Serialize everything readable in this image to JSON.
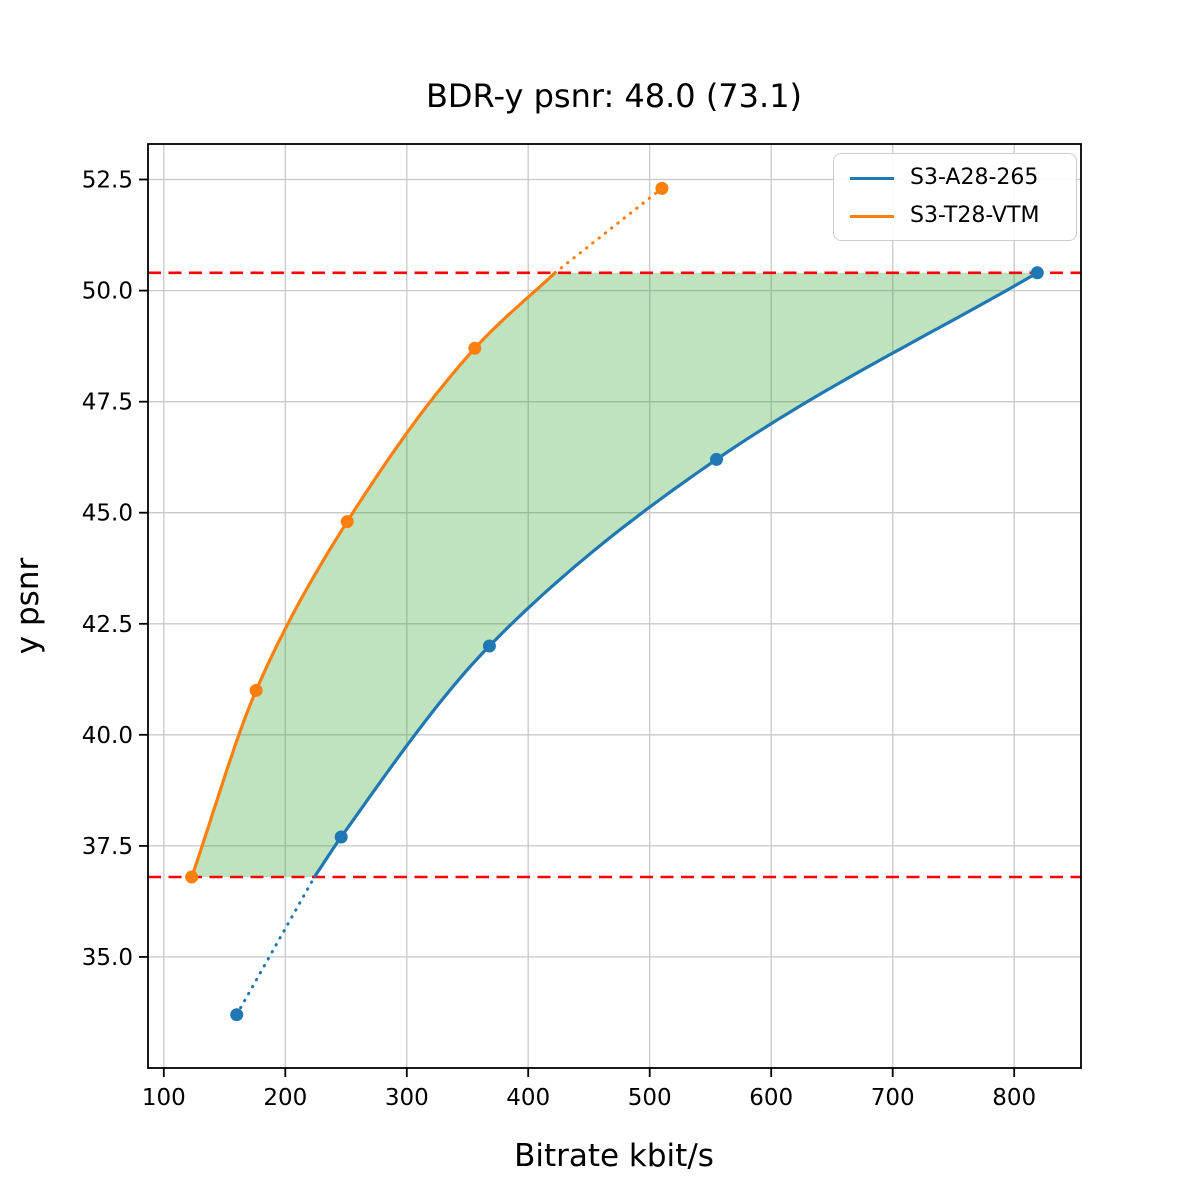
{
  "chart_data": {
    "type": "line",
    "title": "BDR-y psnr: 48.0 (73.1)",
    "xlabel": "Bitrate kbit/s",
    "ylabel": "y psnr",
    "xlim": [
      87,
      855
    ],
    "ylim": [
      32.5,
      53.3
    ],
    "x_ticks": [
      100,
      200,
      300,
      400,
      500,
      600,
      700,
      800
    ],
    "y_ticks": [
      35.0,
      37.5,
      40.0,
      42.5,
      45.0,
      47.5,
      50.0,
      52.5
    ],
    "grid": true,
    "legend_position": "upper right",
    "series": [
      {
        "name": "S3-A28-265",
        "color": "#1f77b4",
        "points": [
          [
            160,
            33.7
          ],
          [
            246,
            37.7
          ],
          [
            368,
            42.0
          ],
          [
            555,
            46.2
          ],
          [
            819,
            50.4
          ]
        ],
        "solid_points": [
          [
            224,
            36.8
          ],
          [
            246,
            37.7
          ],
          [
            368,
            42.0
          ],
          [
            555,
            46.2
          ],
          [
            819,
            50.4
          ]
        ],
        "dotted_points": [
          [
            160,
            33.7
          ],
          [
            224,
            36.8
          ]
        ]
      },
      {
        "name": "S3-T28-VTM",
        "color": "#ff7f0e",
        "points": [
          [
            123,
            36.8
          ],
          [
            176,
            41.0
          ],
          [
            251,
            44.8
          ],
          [
            356,
            48.7
          ],
          [
            510,
            52.3
          ]
        ],
        "solid_points": [
          [
            123,
            36.8
          ],
          [
            176,
            41.0
          ],
          [
            251,
            44.8
          ],
          [
            356,
            48.7
          ],
          [
            422,
            50.4
          ]
        ],
        "dotted_points": [
          [
            422,
            50.4
          ],
          [
            510,
            52.3
          ]
        ]
      }
    ],
    "hlines": [
      {
        "y": 50.4,
        "color": "#ff0000",
        "style": "dashed"
      },
      {
        "y": 36.8,
        "color": "#ff0000",
        "style": "dashed"
      }
    ],
    "fill_between": {
      "color": "#2ca02c",
      "opacity": 0.3,
      "upper_anchor": 50.4,
      "lower_anchor": 36.8
    },
    "grid_color": "#c9c9c9",
    "spine_color": "#000000"
  }
}
